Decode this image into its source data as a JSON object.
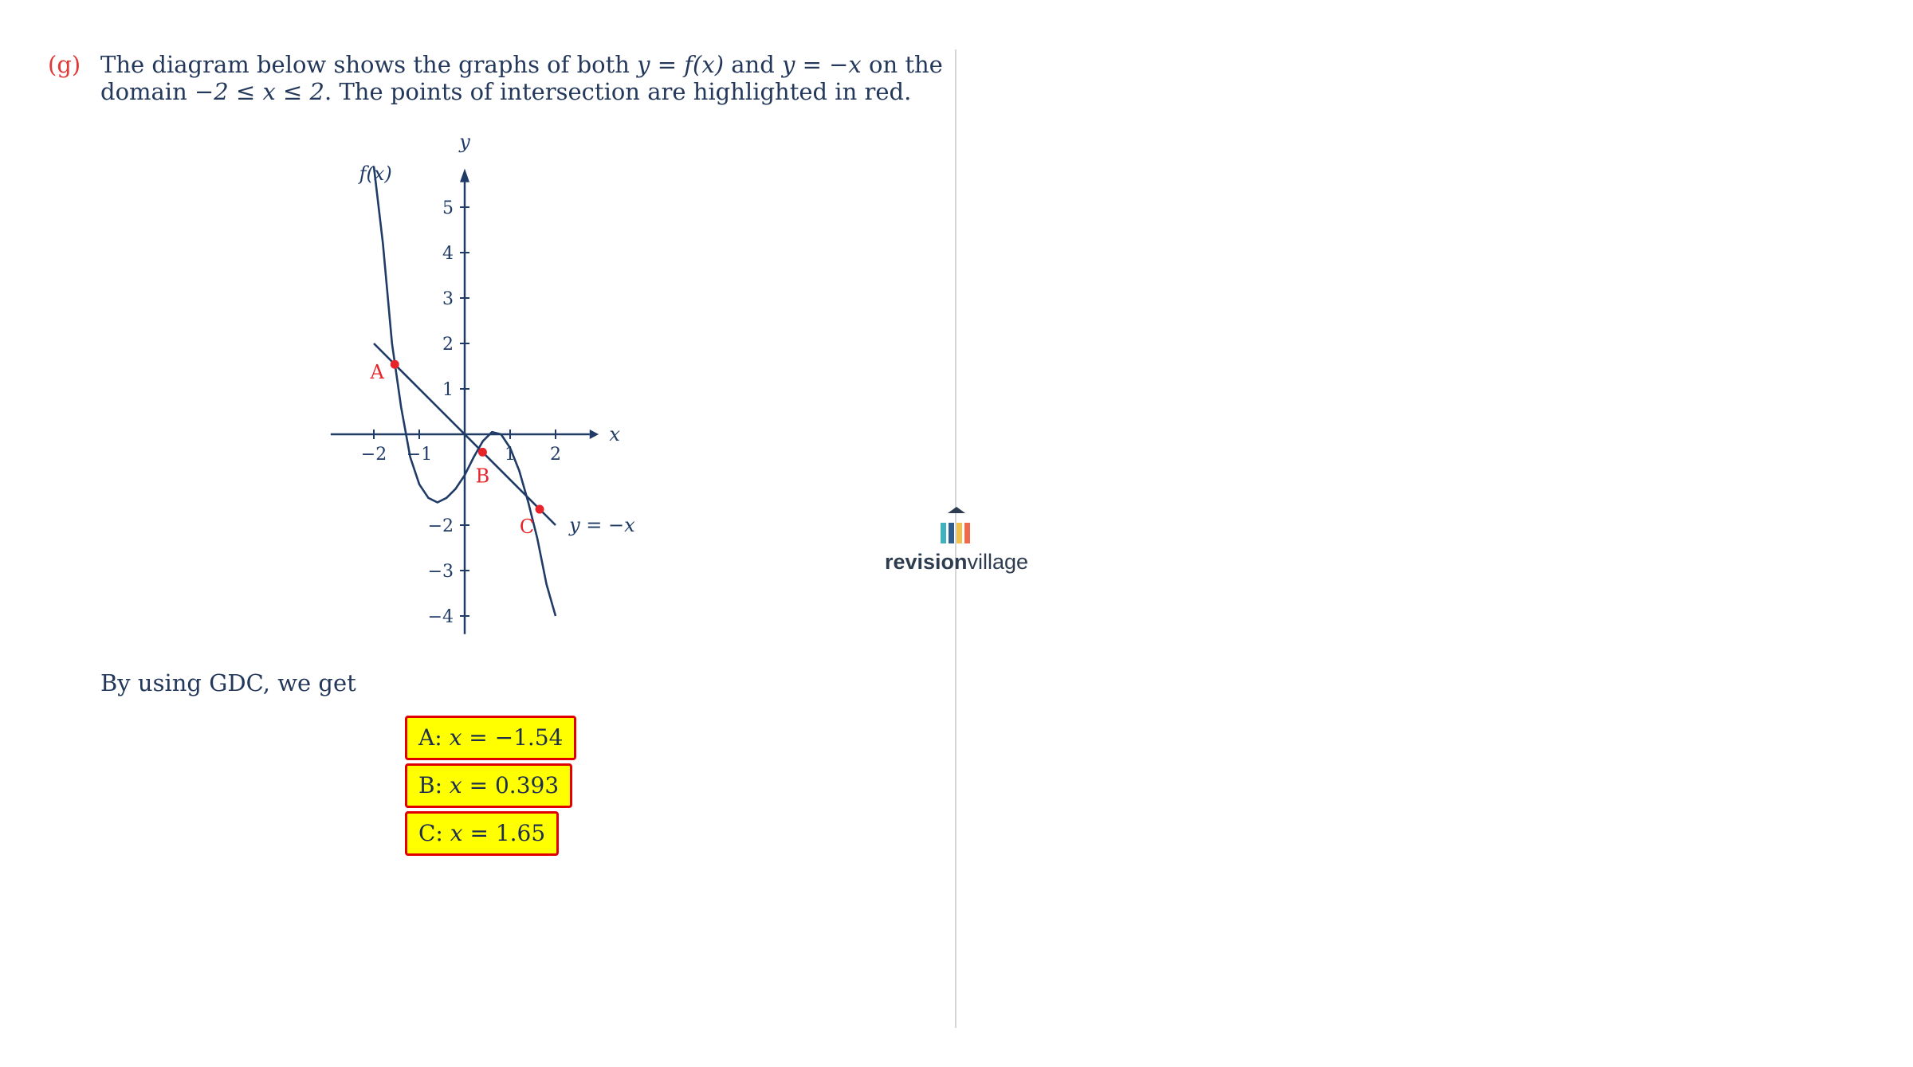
{
  "question": {
    "label": "(g)",
    "line1_a": "The diagram below shows the graphs of both ",
    "line1_b": "y = f(x)",
    "line1_c": " and ",
    "line1_d": "y = −x",
    "line1_e": " on the",
    "line2_a": "domain ",
    "line2_b": "−2 ≤ x ≤ 2",
    "line2_c": ". The points of intersection are highlighted in red."
  },
  "chart_data": {
    "type": "line",
    "xlabel": "x",
    "ylabel": "y",
    "xlim": [
      -3,
      3
    ],
    "ylim": [
      -4.5,
      6
    ],
    "x_ticks": [
      "−2",
      "−1",
      "1",
      "2"
    ],
    "x_tick_values": [
      -2,
      -1,
      1,
      2
    ],
    "y_ticks": [
      "5",
      "4",
      "3",
      "2",
      "1",
      "−2",
      "−3",
      "−4"
    ],
    "y_tick_values": [
      5,
      4,
      3,
      2,
      1,
      -2,
      -3,
      -4
    ],
    "series": [
      {
        "name": "f(x)",
        "x": [
          -2.0,
          -1.8,
          -1.6,
          -1.4,
          -1.2,
          -1.0,
          -0.8,
          -0.6,
          -0.4,
          -0.2,
          0.0,
          0.2,
          0.4,
          0.6,
          0.8,
          1.0,
          1.2,
          1.4,
          1.6,
          1.8,
          2.0
        ],
        "y": [
          5.9,
          4.2,
          2.0,
          0.6,
          -0.5,
          -1.1,
          -1.4,
          -1.5,
          -1.4,
          -1.2,
          -0.9,
          -0.5,
          -0.15,
          0.05,
          0.0,
          -0.3,
          -0.8,
          -1.5,
          -2.3,
          -3.3,
          -4.0
        ]
      },
      {
        "name": "y = −x",
        "x": [
          -2.0,
          2.0
        ],
        "y": [
          2.0,
          -2.0
        ]
      }
    ],
    "points": [
      {
        "label": "A",
        "x": -1.54,
        "y": 1.54
      },
      {
        "label": "B",
        "x": 0.393,
        "y": -0.393
      },
      {
        "label": "C",
        "x": 1.65,
        "y": -1.65
      }
    ],
    "colors": {
      "curve": "#1f3b66",
      "points": "#e8242b",
      "axes": "#1f3b66"
    }
  },
  "gdc_text": "By using GDC, we get",
  "answers": [
    {
      "label": "A: ",
      "var": "x",
      "eq": " = −1.54"
    },
    {
      "label": "B: ",
      "var": "x",
      "eq": " = 0.393"
    },
    {
      "label": "C: ",
      "var": "x",
      "eq": " = 1.65"
    }
  ],
  "brand": {
    "name_bold": "revision",
    "name_light": "village",
    "colors": [
      "#3fb2bd",
      "#2e5e8c",
      "#f2c14e",
      "#ee6c4d"
    ]
  }
}
